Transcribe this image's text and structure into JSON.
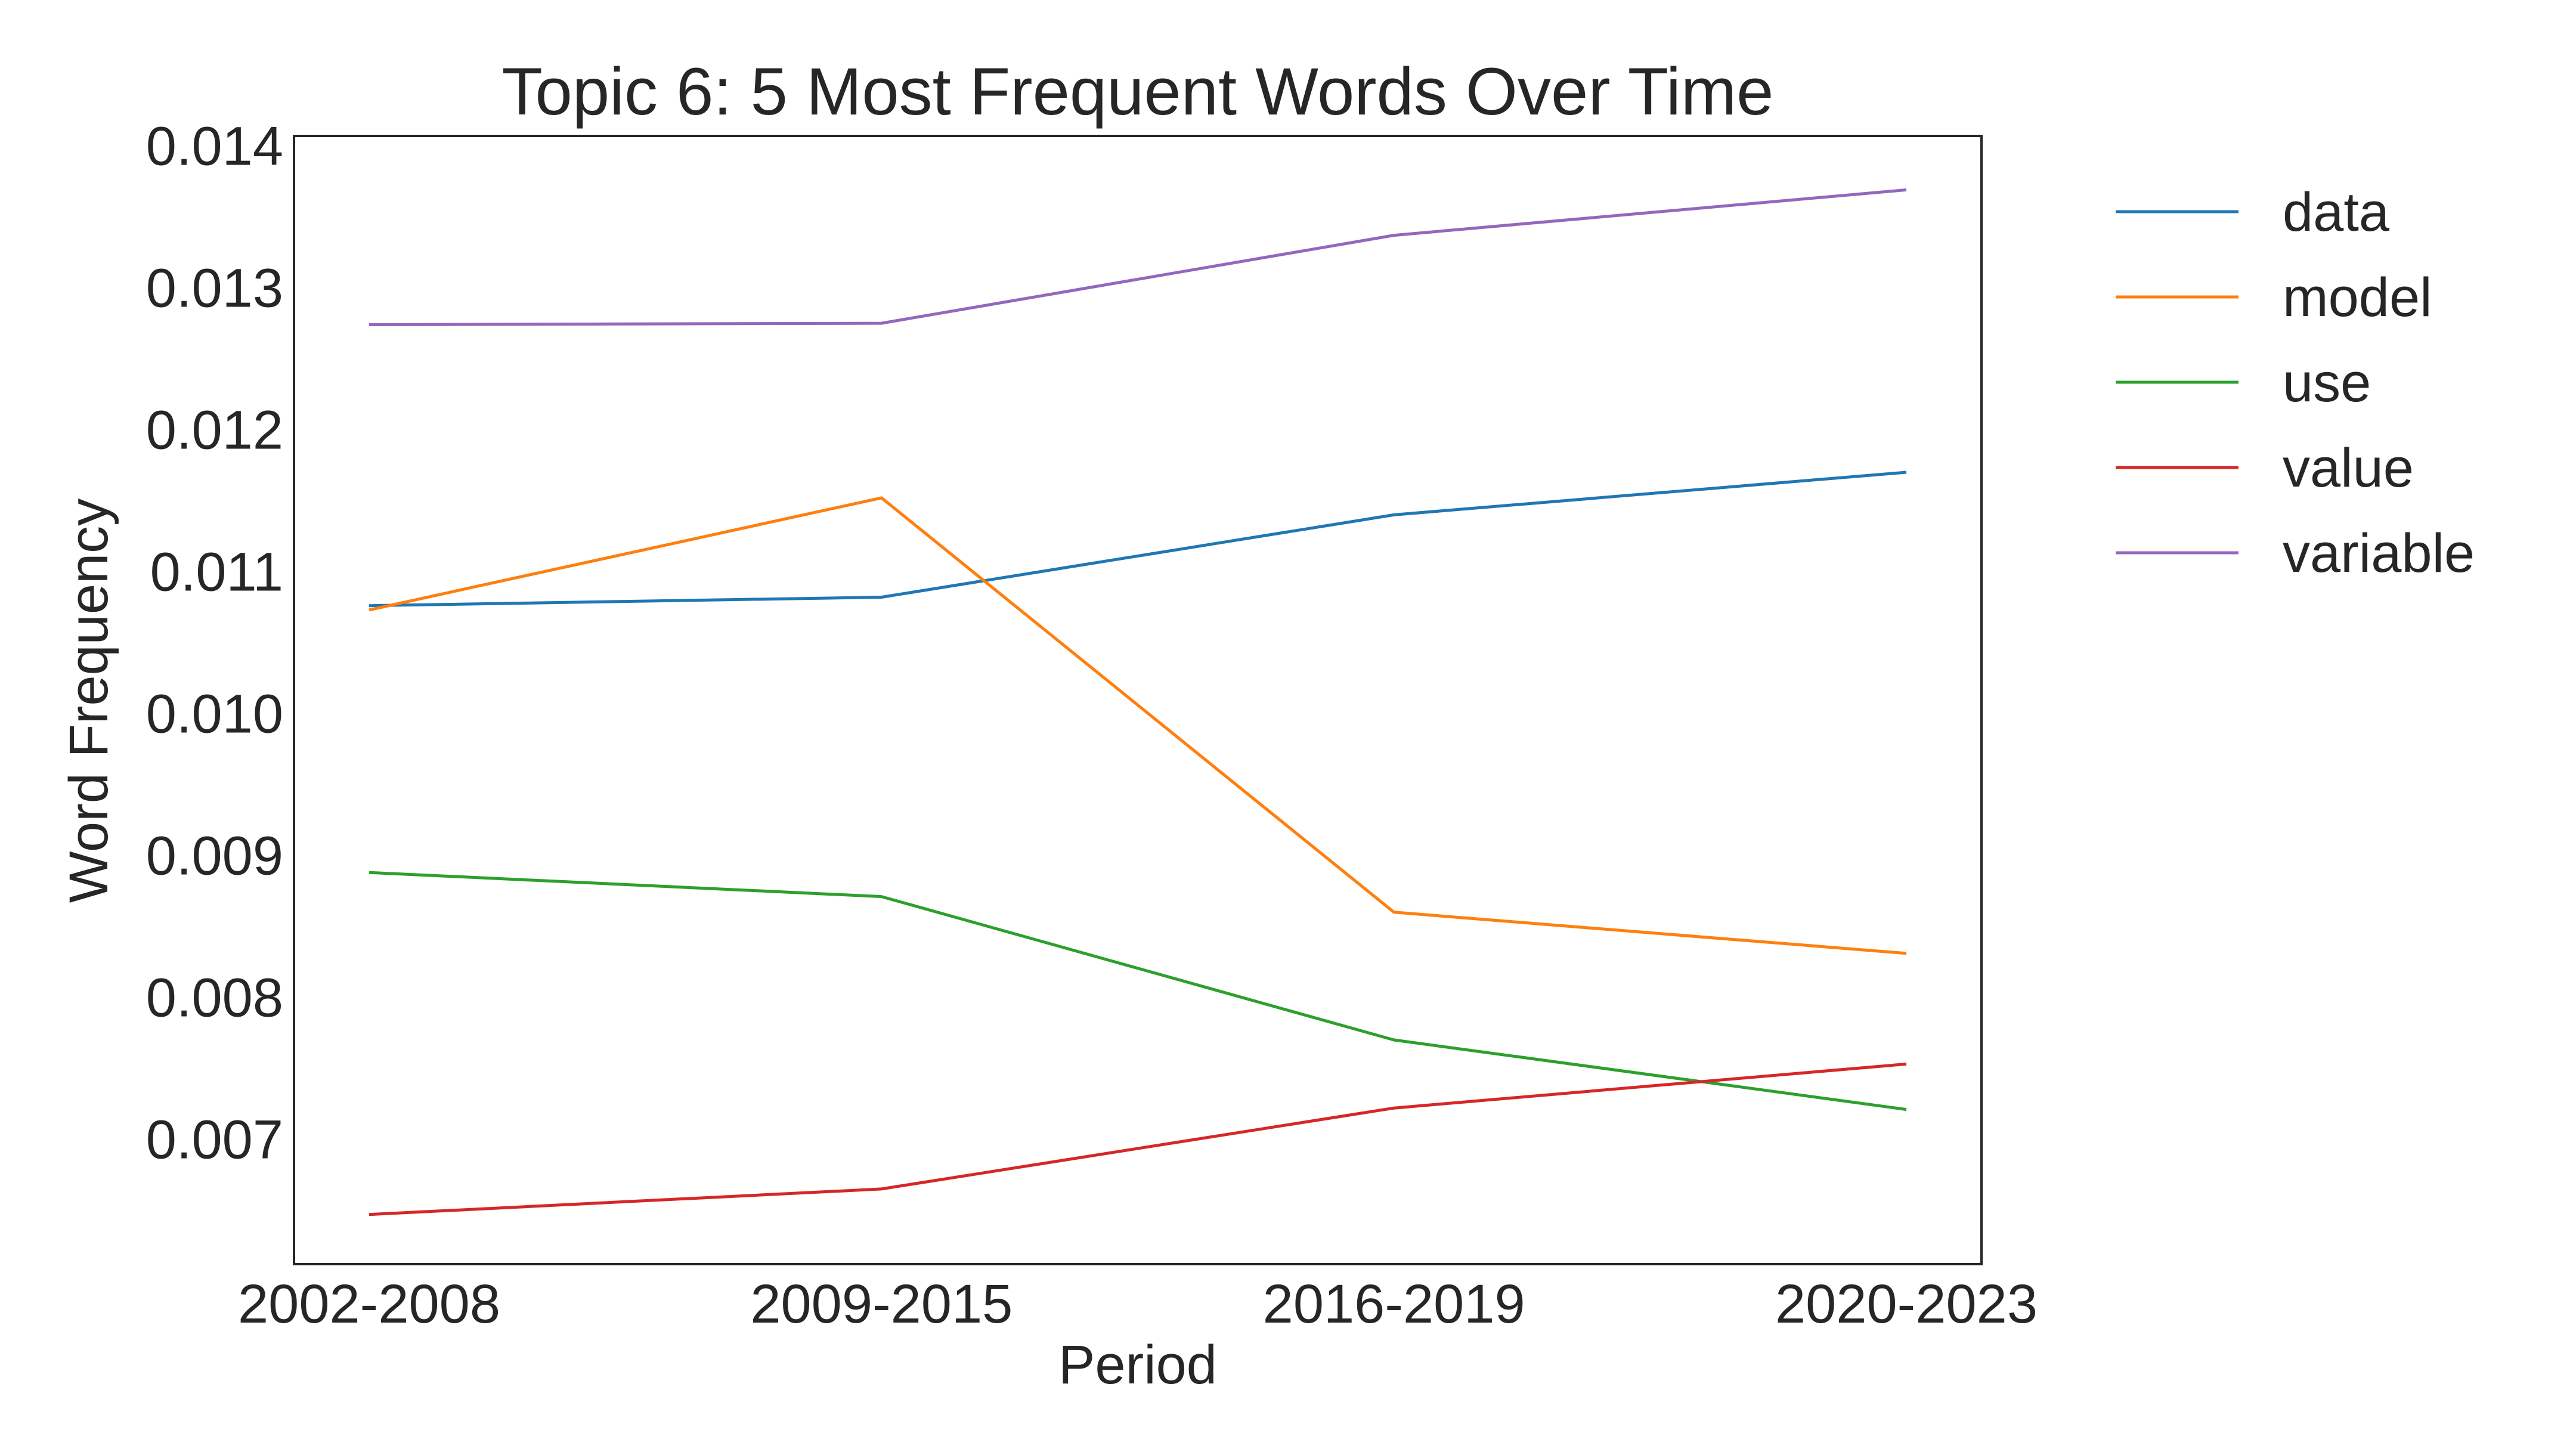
{
  "chart_data": {
    "type": "line",
    "title": "Topic 6: 5 Most Frequent Words Over Time",
    "xlabel": "Period",
    "ylabel": "Word Frequency",
    "categories": [
      "2002-2008",
      "2009-2015",
      "2016-2019",
      "2020-2023"
    ],
    "ylim": [
      0.00612,
      0.01407
    ],
    "yticks": [
      0.007,
      0.008,
      0.009,
      0.01,
      0.011,
      0.012,
      0.013,
      0.014
    ],
    "ytick_labels": [
      "0.007",
      "0.008",
      "0.009",
      "0.010",
      "0.011",
      "0.012",
      "0.013",
      "0.014"
    ],
    "grid": false,
    "legend": "outside-right",
    "series": [
      {
        "name": "data",
        "color": "#1f77b4",
        "values": [
          0.01076,
          0.01082,
          0.0114,
          0.0117
        ]
      },
      {
        "name": "model",
        "color": "#ff7f0e",
        "values": [
          0.01073,
          0.01152,
          0.0086,
          0.00831
        ]
      },
      {
        "name": "use",
        "color": "#2ca02c",
        "values": [
          0.00888,
          0.00871,
          0.0077,
          0.00721
        ]
      },
      {
        "name": "value",
        "color": "#d62728",
        "values": [
          0.00647,
          0.00665,
          0.00722,
          0.00753
        ]
      },
      {
        "name": "variable",
        "color": "#9467bd",
        "values": [
          0.01274,
          0.01275,
          0.01337,
          0.01369
        ]
      }
    ]
  }
}
